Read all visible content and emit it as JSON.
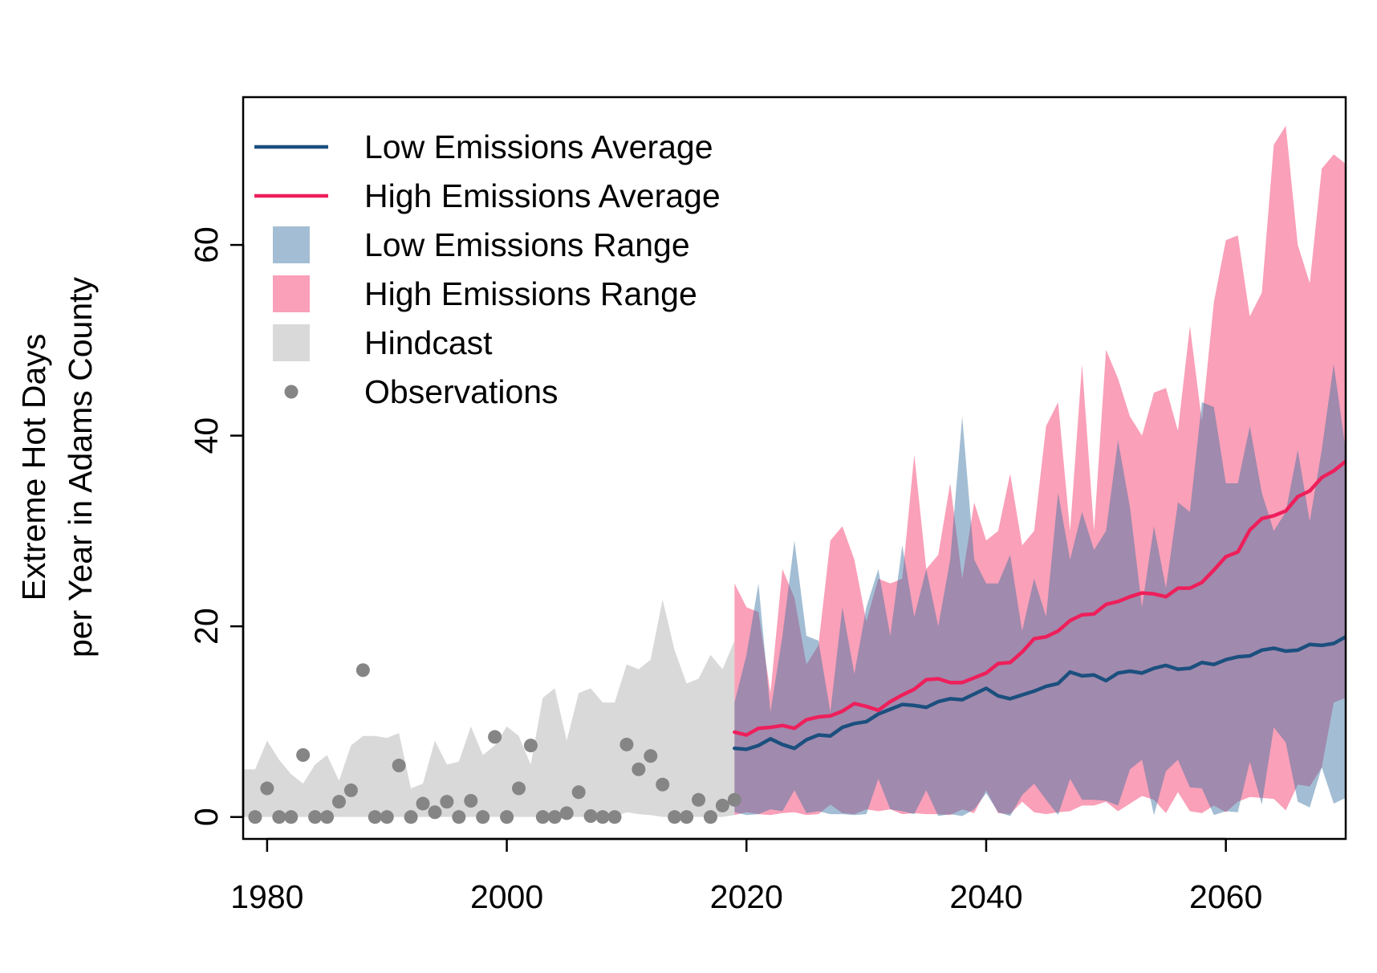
{
  "chart_data": {
    "type": "area",
    "title": "",
    "xlabel": "",
    "ylabel": [
      "Extreme Hot Days",
      "per Year in Adams County"
    ],
    "xlim": [
      1978,
      2070
    ],
    "ylim": [
      -2.3,
      75.5
    ],
    "x_ticks": [
      1980,
      2000,
      2020,
      2040,
      2060
    ],
    "x_tick_labels": [
      "1980",
      "2000",
      "2020",
      "2040",
      "2060"
    ],
    "y_ticks": [
      0,
      20,
      40,
      60
    ],
    "y_tick_labels": [
      "0",
      "20",
      "40",
      "60"
    ],
    "grid": false,
    "legend_position": "top-left",
    "colors": {
      "low_avg": "#1b4f7e",
      "high_avg": "#ee1f5b",
      "low_range": "rgba(52,110,160,0.45)",
      "high_range": "rgba(247,97,138,0.6)",
      "hindcast": "#d9d9d9",
      "observations": "#858585"
    },
    "legend": [
      {
        "label": "Low Emissions Average",
        "kind": "line",
        "series": "low_avg"
      },
      {
        "label": "High Emissions Average",
        "kind": "line",
        "series": "high_avg"
      },
      {
        "label": "Low Emissions Range",
        "kind": "box",
        "series": "low_range"
      },
      {
        "label": "High Emissions Range",
        "kind": "box",
        "series": "high_range"
      },
      {
        "label": "Hindcast",
        "kind": "box",
        "series": "hindcast"
      },
      {
        "label": "Observations",
        "kind": "point",
        "series": "observations"
      }
    ],
    "hindcast": {
      "x": [
        1978,
        1979,
        1980,
        1981,
        1982,
        1983,
        1984,
        1985,
        1986,
        1987,
        1988,
        1989,
        1990,
        1991,
        1992,
        1993,
        1994,
        1995,
        1996,
        1997,
        1998,
        1999,
        2000,
        2001,
        2002,
        2003,
        2004,
        2005,
        2006,
        2007,
        2008,
        2009,
        2010,
        2011,
        2012,
        2013,
        2014,
        2015,
        2016,
        2017,
        2018,
        2019
      ],
      "upper": [
        5,
        5,
        8,
        6,
        4.5,
        3.5,
        5.5,
        6.5,
        3.8,
        7.5,
        8.5,
        8.5,
        8.3,
        8.8,
        3,
        3.5,
        8,
        5.5,
        5.8,
        9.5,
        6.5,
        7.5,
        9.5,
        8.5,
        5.5,
        12.5,
        13.5,
        8,
        13,
        13.5,
        12,
        12,
        16,
        15.5,
        16.5,
        22.8,
        17.5,
        14,
        14.5,
        17,
        15.5,
        18.5
      ],
      "lower": [
        0,
        0,
        0,
        0,
        0,
        0,
        0,
        0,
        0,
        0,
        0,
        0,
        0,
        0,
        0,
        0,
        0,
        0,
        0,
        0,
        0,
        0,
        0,
        0,
        0,
        0,
        0,
        0,
        0,
        0,
        0,
        0,
        0.5,
        0.3,
        0.2,
        0,
        0,
        0,
        0,
        0,
        0,
        0.2
      ]
    },
    "observations": {
      "x": [
        1979,
        1980,
        1981,
        1982,
        1983,
        1984,
        1985,
        1986,
        1987,
        1988,
        1989,
        1990,
        1991,
        1992,
        1993,
        1994,
        1995,
        1996,
        1997,
        1998,
        1999,
        2000,
        2001,
        2002,
        2003,
        2004,
        2005,
        2006,
        2007,
        2008,
        2009,
        2010,
        2011,
        2012,
        2013,
        2014,
        2015,
        2016,
        2017,
        2018,
        2019
      ],
      "y": [
        0,
        3,
        0,
        0,
        6.5,
        0,
        0,
        1.6,
        2.8,
        15.4,
        0,
        0,
        5.4,
        0,
        1.4,
        0.5,
        1.6,
        0,
        1.7,
        0,
        8.4,
        0,
        3,
        7.5,
        0,
        0,
        0.4,
        2.6,
        0.1,
        0,
        0,
        7.6,
        5,
        6.4,
        3.4,
        0,
        0,
        1.8,
        0,
        1.2,
        1.8
      ]
    },
    "low_range": {
      "x": [
        2019,
        2020,
        2021,
        2022,
        2023,
        2024,
        2025,
        2026,
        2027,
        2028,
        2029,
        2030,
        2031,
        2032,
        2033,
        2034,
        2035,
        2036,
        2037,
        2038,
        2039,
        2040,
        2041,
        2042,
        2043,
        2044,
        2045,
        2046,
        2047,
        2048,
        2049,
        2050,
        2051,
        2052,
        2053,
        2054,
        2055,
        2056,
        2057,
        2058,
        2059,
        2060,
        2061,
        2062,
        2063,
        2064,
        2065,
        2066,
        2067,
        2068,
        2069,
        2070
      ],
      "upper": [
        12,
        17,
        24.5,
        11,
        19,
        29,
        19,
        18.5,
        11,
        22,
        15,
        22,
        26,
        19,
        28.5,
        21,
        26,
        20,
        27,
        42,
        27,
        24.5,
        24.5,
        27.5,
        19.5,
        25,
        21,
        34,
        27,
        32,
        28,
        30,
        39.5,
        32.5,
        22,
        30.5,
        24,
        33,
        32,
        43.5,
        43,
        35,
        35,
        41,
        34,
        30,
        32,
        38.5,
        31,
        38.5,
        47.5,
        38.5
      ],
      "lower": [
        0.5,
        0.2,
        0.3,
        0.8,
        0.6,
        2.8,
        0.4,
        0.6,
        0.3,
        0.3,
        0.2,
        0.3,
        4,
        0.8,
        0.6,
        0.3,
        2.8,
        0.1,
        0.3,
        0.1,
        0.8,
        2.5,
        0.5,
        0.1,
        2.3,
        3.5,
        1.8,
        0.2,
        4,
        1.8,
        1.8,
        1.7,
        1.2,
        5,
        6,
        0.2,
        4.8,
        6,
        3.1,
        3,
        0.2,
        0.6,
        0.5,
        5.8,
        1.3,
        9.4,
        7.8,
        1.6,
        1,
        5.2,
        1.4,
        2
      ]
    },
    "high_range": {
      "x": [
        2019,
        2020,
        2021,
        2022,
        2023,
        2024,
        2025,
        2026,
        2027,
        2028,
        2029,
        2030,
        2031,
        2032,
        2033,
        2034,
        2035,
        2036,
        2037,
        2038,
        2039,
        2040,
        2041,
        2042,
        2043,
        2044,
        2045,
        2046,
        2047,
        2048,
        2049,
        2050,
        2051,
        2052,
        2053,
        2054,
        2055,
        2056,
        2057,
        2058,
        2059,
        2060,
        2061,
        2062,
        2063,
        2064,
        2065,
        2066,
        2067,
        2068,
        2069,
        2070
      ],
      "upper": [
        24.5,
        22,
        21.5,
        13,
        26,
        23,
        16,
        18,
        29,
        30.5,
        27,
        20.5,
        25,
        24.5,
        25,
        38,
        26,
        27.5,
        35,
        25,
        33,
        29,
        30,
        36,
        28.5,
        30,
        41,
        43.5,
        30,
        47.5,
        30,
        49,
        46,
        42,
        40,
        44.5,
        45,
        40.5,
        51.5,
        41.5,
        54,
        60.5,
        61,
        52.5,
        55,
        70.5,
        72.5,
        60,
        56,
        68,
        69.5,
        68.5
      ],
      "lower": [
        0.2,
        0.5,
        0.3,
        0.2,
        0.4,
        0.5,
        0.2,
        0.3,
        1.3,
        0.4,
        0.3,
        0.8,
        0.6,
        0.8,
        0.3,
        0.4,
        0.3,
        0.3,
        0.2,
        0.8,
        0.4,
        2.8,
        0.4,
        0.3,
        1.6,
        0.5,
        0.3,
        0.5,
        0.6,
        1.2,
        1.2,
        1.6,
        0.6,
        1.4,
        2.2,
        1.8,
        0.4,
        2.6,
        0.6,
        0.4,
        1.2,
        0.5,
        1.6,
        2.1,
        2,
        1.9,
        0.7,
        3.4,
        3.2,
        5.2,
        12,
        12.5
      ]
    },
    "low_avg": {
      "x": [
        2019,
        2020,
        2021,
        2022,
        2023,
        2024,
        2025,
        2026,
        2027,
        2028,
        2029,
        2030,
        2031,
        2032,
        2033,
        2034,
        2035,
        2036,
        2037,
        2038,
        2039,
        2040,
        2041,
        2042,
        2043,
        2044,
        2045,
        2046,
        2047,
        2048,
        2049,
        2050,
        2051,
        2052,
        2053,
        2054,
        2055,
        2056,
        2057,
        2058,
        2059,
        2060,
        2061,
        2062,
        2063,
        2064,
        2065,
        2066,
        2067,
        2068,
        2069,
        2070
      ],
      "y": [
        7.2,
        7.1,
        7.5,
        8.2,
        7.6,
        7.2,
        8.1,
        8.6,
        8.5,
        9.4,
        9.8,
        10,
        10.8,
        11.3,
        11.8,
        11.7,
        11.5,
        12.1,
        12.4,
        12.3,
        12.9,
        13.5,
        12.7,
        12.4,
        12.8,
        13.2,
        13.7,
        14,
        15.2,
        14.8,
        14.9,
        14.3,
        15.1,
        15.3,
        15.1,
        15.6,
        15.9,
        15.5,
        15.6,
        16.2,
        16,
        16.5,
        16.8,
        16.9,
        17.5,
        17.7,
        17.4,
        17.5,
        18.1,
        18,
        18.2,
        18.9
      ]
    },
    "high_avg": {
      "x": [
        2019,
        2020,
        2021,
        2022,
        2023,
        2024,
        2025,
        2026,
        2027,
        2028,
        2029,
        2030,
        2031,
        2032,
        2033,
        2034,
        2035,
        2036,
        2037,
        2038,
        2039,
        2040,
        2041,
        2042,
        2043,
        2044,
        2045,
        2046,
        2047,
        2048,
        2049,
        2050,
        2051,
        2052,
        2053,
        2054,
        2055,
        2056,
        2057,
        2058,
        2059,
        2060,
        2061,
        2062,
        2063,
        2064,
        2065,
        2066,
        2067,
        2068,
        2069,
        2070
      ],
      "y": [
        8.9,
        8.6,
        9.3,
        9.4,
        9.6,
        9.3,
        10.2,
        10.5,
        10.6,
        11.1,
        11.9,
        11.6,
        11.2,
        12.1,
        12.8,
        13.4,
        14.4,
        14.5,
        14.1,
        14.1,
        14.6,
        15.1,
        16.1,
        16.2,
        17.3,
        18.7,
        18.9,
        19.5,
        20.6,
        21.2,
        21.3,
        22.3,
        22.6,
        23.1,
        23.5,
        23.4,
        23.1,
        24,
        24,
        24.6,
        25.9,
        27.3,
        27.8,
        30.1,
        31.3,
        31.6,
        32.1,
        33.6,
        34.2,
        35.6,
        36.3,
        37.3
      ]
    }
  }
}
